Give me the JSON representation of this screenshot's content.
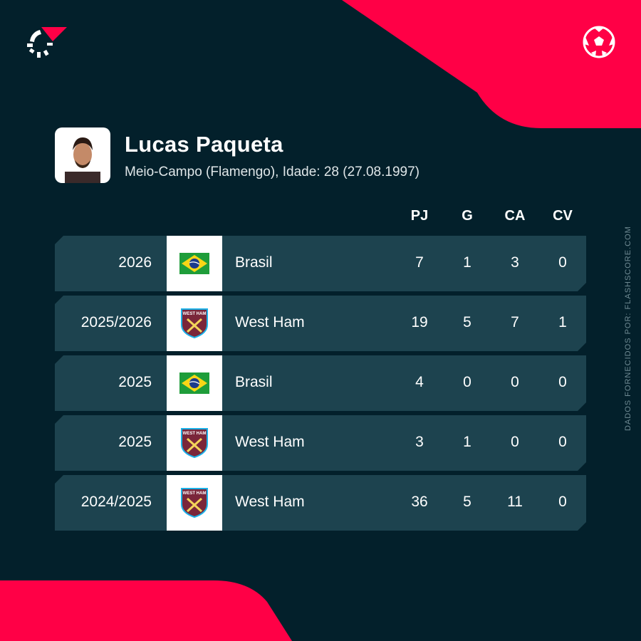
{
  "brand": {
    "accent": "#ff0046",
    "background": "#03202b",
    "row": "#1d434f"
  },
  "player": {
    "name": "Lucas Paqueta",
    "details": "Meio-Campo (Flamengo), Idade: 28 (27.08.1997)"
  },
  "columns": [
    "PJ",
    "G",
    "CA",
    "CV"
  ],
  "rows": [
    {
      "season": "2026",
      "team": "Brasil",
      "crest": "brazil-flag",
      "pj": "7",
      "g": "1",
      "ca": "3",
      "cv": "0"
    },
    {
      "season": "2025/2026",
      "team": "West Ham",
      "crest": "west-ham-crest",
      "pj": "19",
      "g": "5",
      "ca": "7",
      "cv": "1"
    },
    {
      "season": "2025",
      "team": "Brasil",
      "crest": "brazil-flag",
      "pj": "4",
      "g": "0",
      "ca": "0",
      "cv": "0"
    },
    {
      "season": "2025",
      "team": "West Ham",
      "crest": "west-ham-crest",
      "pj": "3",
      "g": "1",
      "ca": "0",
      "cv": "0"
    },
    {
      "season": "2024/2025",
      "team": "West Ham",
      "crest": "west-ham-crest",
      "pj": "36",
      "g": "5",
      "ca": "11",
      "cv": "0"
    }
  ],
  "credit": "DADOS FORNECIDOS POR: FLASHSCORE.COM"
}
